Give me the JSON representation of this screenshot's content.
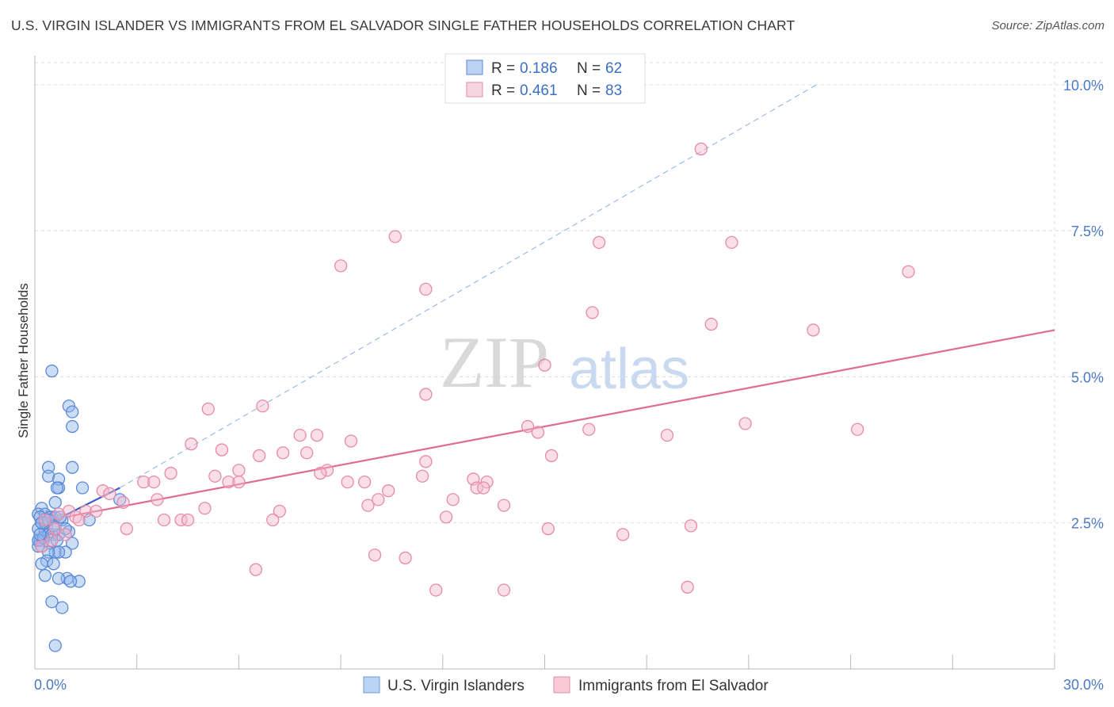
{
  "title": "U.S. VIRGIN ISLANDER VS IMMIGRANTS FROM EL SALVADOR SINGLE FATHER HOUSEHOLDS CORRELATION CHART",
  "source": "Source: ZipAtlas.com",
  "watermark": {
    "zip": "ZIP",
    "atlas": "atlas"
  },
  "chart_data": {
    "type": "scatter",
    "title": "U.S. VIRGIN ISLANDER VS IMMIGRANTS FROM EL SALVADOR SINGLE FATHER HOUSEHOLDS CORRELATION CHART",
    "xlabel": "",
    "ylabel": "Single Father Households",
    "xlim": [
      0,
      30
    ],
    "ylim": [
      0,
      10.5
    ],
    "x_tick_labels": [
      {
        "value": 0,
        "label": "0.0%"
      },
      {
        "value": 30,
        "label": "30.0%"
      }
    ],
    "y_tick_labels": [
      {
        "value": 2.5,
        "label": "2.5%"
      },
      {
        "value": 5.0,
        "label": "5.0%"
      },
      {
        "value": 7.5,
        "label": "7.5%"
      },
      {
        "value": 10.0,
        "label": "10.0%"
      }
    ],
    "grid": true,
    "legend_top": {
      "placement": "top-center",
      "entries": [
        {
          "r_label": "R =",
          "r_value": "0.186",
          "n_label": "N =",
          "n_value": "62"
        },
        {
          "r_label": "R =",
          "r_value": "0.461",
          "n_label": "N =",
          "n_value": "83"
        }
      ]
    },
    "series": [
      {
        "name": "U.S. Virgin Islanders",
        "color": "#8fb4ea",
        "stroke": "#5b8ad6",
        "trend": {
          "x": [
            0.1,
            2.5
          ],
          "y": [
            2.4,
            3.1
          ],
          "color": "#3f5fc8"
        },
        "trend_extended": {
          "x": [
            2.5,
            23.0
          ],
          "y": [
            3.1,
            10.0
          ],
          "color": "#8aaee6"
        },
        "points": [
          [
            0.5,
            5.1
          ],
          [
            1.0,
            4.5
          ],
          [
            1.1,
            4.4
          ],
          [
            1.1,
            4.15
          ],
          [
            0.4,
            3.45
          ],
          [
            1.1,
            3.45
          ],
          [
            0.4,
            3.3
          ],
          [
            0.7,
            3.25
          ],
          [
            0.7,
            3.1
          ],
          [
            0.65,
            3.1
          ],
          [
            1.4,
            3.1
          ],
          [
            0.6,
            2.85
          ],
          [
            0.2,
            2.75
          ],
          [
            0.1,
            2.65
          ],
          [
            0.3,
            2.65
          ],
          [
            0.15,
            2.6
          ],
          [
            0.5,
            2.6
          ],
          [
            0.45,
            2.6
          ],
          [
            0.6,
            2.6
          ],
          [
            0.8,
            2.55
          ],
          [
            1.6,
            2.55
          ],
          [
            0.2,
            2.5
          ],
          [
            0.35,
            2.45
          ],
          [
            0.55,
            2.4
          ],
          [
            0.1,
            2.4
          ],
          [
            0.3,
            2.35
          ],
          [
            1.0,
            2.35
          ],
          [
            0.4,
            2.3
          ],
          [
            0.5,
            2.3
          ],
          [
            0.7,
            2.3
          ],
          [
            0.15,
            2.2
          ],
          [
            0.25,
            2.2
          ],
          [
            0.45,
            2.15
          ],
          [
            1.1,
            2.15
          ],
          [
            0.2,
            2.1
          ],
          [
            0.1,
            2.1
          ],
          [
            0.6,
            2.0
          ],
          [
            0.9,
            2.0
          ],
          [
            0.7,
            2.0
          ],
          [
            0.4,
            2.0
          ],
          [
            0.35,
            1.85
          ],
          [
            0.55,
            1.8
          ],
          [
            0.2,
            1.8
          ],
          [
            0.3,
            1.6
          ],
          [
            0.95,
            1.55
          ],
          [
            0.7,
            1.55
          ],
          [
            1.3,
            1.5
          ],
          [
            1.05,
            1.5
          ],
          [
            0.5,
            1.15
          ],
          [
            0.8,
            1.05
          ],
          [
            0.6,
            0.4
          ],
          [
            0.3,
            2.5
          ],
          [
            0.1,
            2.2
          ],
          [
            0.2,
            2.5
          ],
          [
            2.5,
            2.9
          ],
          [
            0.65,
            2.2
          ],
          [
            0.55,
            2.45
          ],
          [
            0.25,
            2.25
          ],
          [
            0.4,
            2.55
          ],
          [
            0.15,
            2.3
          ],
          [
            0.75,
            2.6
          ],
          [
            0.9,
            2.4
          ]
        ]
      },
      {
        "name": "Immigrants from El Salvador",
        "color": "#f4b8cc",
        "stroke": "#e68aa8",
        "trend": {
          "x": [
            0.9,
            30.0
          ],
          "y": [
            2.6,
            5.8
          ],
          "color": "#e06c96"
        },
        "points": [
          [
            19.6,
            8.9
          ],
          [
            10.6,
            7.4
          ],
          [
            16.6,
            7.3
          ],
          [
            20.5,
            7.3
          ],
          [
            9.0,
            6.9
          ],
          [
            25.7,
            6.8
          ],
          [
            11.5,
            6.5
          ],
          [
            16.4,
            6.1
          ],
          [
            19.9,
            5.9
          ],
          [
            22.9,
            5.8
          ],
          [
            15.0,
            5.2
          ],
          [
            11.5,
            4.7
          ],
          [
            5.1,
            4.45
          ],
          [
            6.7,
            4.5
          ],
          [
            14.5,
            4.15
          ],
          [
            16.3,
            4.1
          ],
          [
            20.9,
            4.2
          ],
          [
            24.2,
            4.1
          ],
          [
            14.8,
            4.05
          ],
          [
            18.6,
            4.0
          ],
          [
            7.8,
            4.0
          ],
          [
            8.3,
            4.0
          ],
          [
            4.6,
            3.85
          ],
          [
            9.3,
            3.9
          ],
          [
            5.5,
            3.75
          ],
          [
            7.3,
            3.7
          ],
          [
            6.6,
            3.65
          ],
          [
            8.0,
            3.7
          ],
          [
            15.2,
            3.65
          ],
          [
            11.5,
            3.55
          ],
          [
            8.6,
            3.4
          ],
          [
            6.0,
            3.4
          ],
          [
            4.0,
            3.35
          ],
          [
            8.4,
            3.35
          ],
          [
            5.3,
            3.3
          ],
          [
            11.4,
            3.3
          ],
          [
            12.9,
            3.25
          ],
          [
            3.2,
            3.2
          ],
          [
            3.5,
            3.2
          ],
          [
            5.7,
            3.2
          ],
          [
            6.0,
            3.2
          ],
          [
            9.2,
            3.2
          ],
          [
            9.7,
            3.2
          ],
          [
            13.3,
            3.2
          ],
          [
            13.0,
            3.1
          ],
          [
            13.2,
            3.1
          ],
          [
            10.4,
            3.05
          ],
          [
            2.0,
            3.05
          ],
          [
            2.2,
            3.0
          ],
          [
            3.6,
            2.9
          ],
          [
            10.1,
            2.9
          ],
          [
            12.3,
            2.9
          ],
          [
            2.6,
            2.85
          ],
          [
            9.8,
            2.8
          ],
          [
            13.8,
            2.8
          ],
          [
            5.0,
            2.75
          ],
          [
            7.2,
            2.7
          ],
          [
            1.5,
            2.7
          ],
          [
            1.8,
            2.7
          ],
          [
            1.0,
            2.7
          ],
          [
            0.7,
            2.65
          ],
          [
            1.2,
            2.6
          ],
          [
            4.3,
            2.55
          ],
          [
            3.8,
            2.55
          ],
          [
            4.5,
            2.55
          ],
          [
            7.0,
            2.55
          ],
          [
            12.1,
            2.6
          ],
          [
            1.3,
            2.55
          ],
          [
            2.7,
            2.4
          ],
          [
            15.1,
            2.4
          ],
          [
            19.3,
            2.45
          ],
          [
            17.3,
            2.3
          ],
          [
            10.0,
            1.95
          ],
          [
            10.9,
            1.9
          ],
          [
            6.5,
            1.7
          ],
          [
            11.8,
            1.35
          ],
          [
            13.8,
            1.35
          ],
          [
            19.2,
            1.4
          ],
          [
            0.3,
            2.55
          ],
          [
            0.6,
            2.4
          ],
          [
            0.5,
            2.2
          ],
          [
            0.9,
            2.3
          ],
          [
            0.2,
            2.1
          ]
        ]
      }
    ]
  },
  "legend_bottom": [
    {
      "label": "U.S. Virgin Islanders",
      "color": "#bcd3f3",
      "stroke": "#6f98d8"
    },
    {
      "label": "Immigrants from El Salvador",
      "color": "#f8cad8",
      "stroke": "#e68aa8"
    }
  ]
}
